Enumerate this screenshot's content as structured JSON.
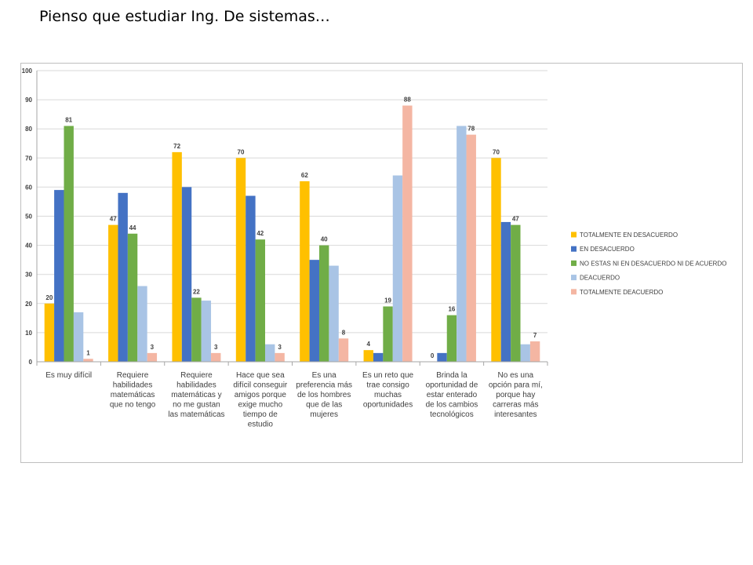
{
  "slide": {
    "title": "Pienso que estudiar Ing. De sistemas…"
  },
  "chart_data": {
    "type": "bar",
    "ylim": [
      0,
      100
    ],
    "yticks": [
      0,
      10,
      20,
      30,
      40,
      50,
      60,
      70,
      80,
      90,
      100
    ],
    "grid": true,
    "legend_position": "right",
    "categories": [
      [
        "Es muy difícil"
      ],
      [
        "Requiere",
        "habilidades",
        "matemáticas",
        "que no tengo"
      ],
      [
        "Requiere",
        "habilidades",
        "matemáticas y",
        "no me gustan",
        "las matemáticas"
      ],
      [
        "Hace que sea",
        "difícil conseguir",
        "amigos porque",
        "exige mucho",
        "tiempo de",
        "estudio"
      ],
      [
        "Es una",
        "preferencia más",
        "de los hombres",
        "que de las",
        "mujeres"
      ],
      [
        "Es un reto que",
        "trae consigo",
        "muchas",
        "oportunidades"
      ],
      [
        "Brinda la",
        "oportunidad de",
        "estar enterado",
        "de los cambios",
        "tecnológicos"
      ],
      [
        "No es una",
        "opción para mí,",
        "porque hay",
        "carreras más",
        "interesantes"
      ]
    ],
    "series": [
      {
        "name": "TOTALMENTE EN DESACUERDO",
        "color": "#FFC000",
        "values": [
          20,
          47,
          72,
          70,
          62,
          4,
          0,
          70
        ],
        "labels": [
          true,
          true,
          true,
          true,
          true,
          true,
          true,
          true
        ]
      },
      {
        "name": "EN DESACUERDO",
        "color": "#4472C4",
        "values": [
          59,
          58,
          60,
          57,
          35,
          3,
          3,
          48
        ],
        "labels": [
          false,
          false,
          false,
          false,
          false,
          false,
          false,
          false
        ]
      },
      {
        "name": "NO ESTAS NI EN DESACUERDO NI DE ACUERDO",
        "color": "#70AD47",
        "values": [
          81,
          44,
          22,
          42,
          40,
          19,
          16,
          47
        ],
        "labels": [
          true,
          true,
          true,
          true,
          true,
          true,
          true,
          true
        ]
      },
      {
        "name": "DEACUERDO",
        "color": "#A9C4E5",
        "values": [
          17,
          26,
          21,
          6,
          33,
          64,
          81,
          6
        ],
        "labels": [
          false,
          false,
          false,
          false,
          false,
          false,
          false,
          false
        ]
      },
      {
        "name": "TOTALMENTE DEACUERDO",
        "color": "#F4B6A3",
        "values": [
          1,
          3,
          3,
          3,
          8,
          88,
          78,
          7
        ],
        "labels": [
          true,
          true,
          true,
          true,
          true,
          true,
          true,
          true
        ]
      }
    ]
  }
}
